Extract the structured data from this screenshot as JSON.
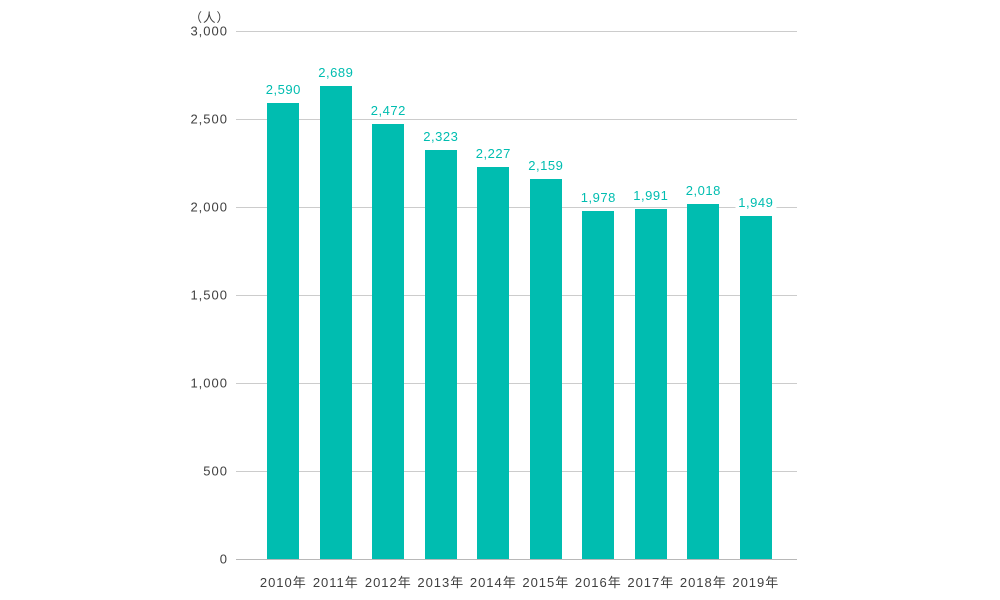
{
  "chart_data": {
    "type": "bar",
    "title": "",
    "unit_label": "（人）",
    "categories": [
      "2010年",
      "2011年",
      "2012年",
      "2013年",
      "2014年",
      "2015年",
      "2016年",
      "2017年",
      "2018年",
      "2019年"
    ],
    "values": [
      2590,
      2689,
      2472,
      2323,
      2227,
      2159,
      1978,
      1991,
      2018,
      1949
    ],
    "value_labels": [
      "2,590",
      "2,689",
      "2,472",
      "2,323",
      "2,227",
      "2,159",
      "1,978",
      "1,991",
      "2,018",
      "1,949"
    ],
    "xlabel": "",
    "ylabel": "",
    "ylim": [
      0,
      3000
    ],
    "yticks": [
      0,
      500,
      1000,
      1500,
      2000,
      2500,
      3000
    ],
    "ytick_labels": [
      "0",
      "500",
      "1,000",
      "1,500",
      "2,000",
      "2,500",
      "3,000"
    ],
    "grid": true,
    "legend": "none",
    "colors": {
      "bar": "#00bdb0",
      "value_label": "#00bdb0",
      "tick_text": "#3f3f3f",
      "gridline": "#cccccc",
      "axis_line": "#b8b8b8",
      "background": "#ffffff"
    }
  }
}
